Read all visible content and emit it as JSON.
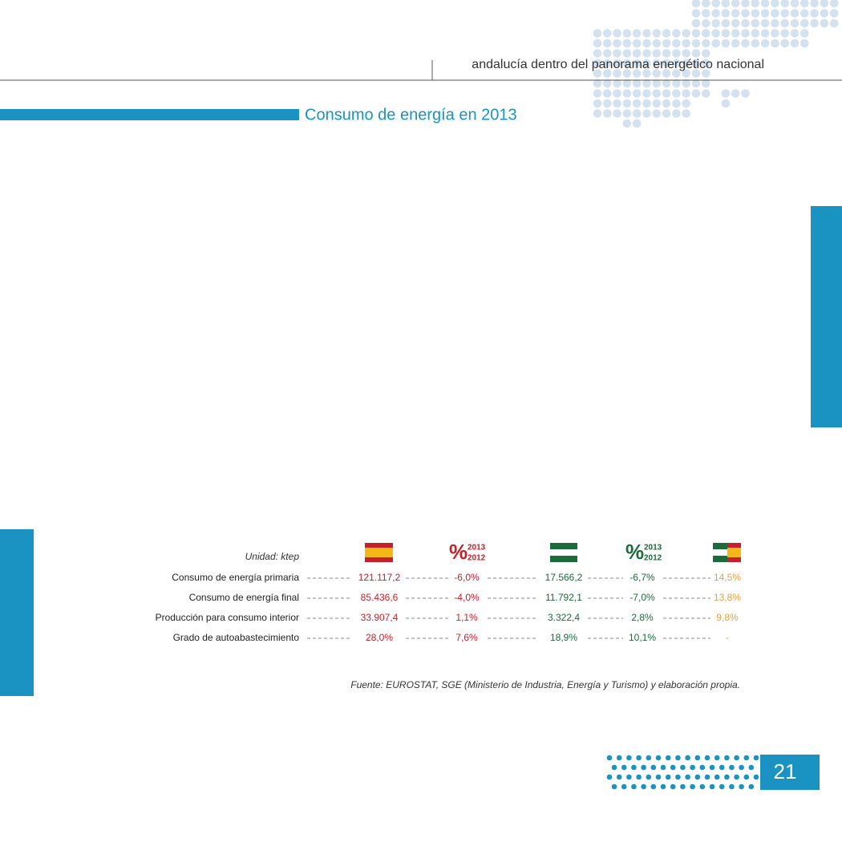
{
  "header": {
    "title": "andalucía dentro del panorama energético nacional"
  },
  "section_title": "Consumo de energía en 2013",
  "table": {
    "unit": "Unidad: ktep",
    "pct_headers": [
      {
        "symbol": "%",
        "top": "2013",
        "bottom": "2012"
      },
      {
        "symbol": "%",
        "top": "2013",
        "bottom": "2012"
      }
    ],
    "rows": [
      {
        "label": "Consumo de energía primaria",
        "cells": [
          "121.117,2",
          "-6,0%",
          "17.566,2",
          "-6,7%",
          "14,5%"
        ]
      },
      {
        "label": "Consumo de energía final",
        "cells": [
          "85.436,6",
          "-4,0%",
          "11.792,1",
          "-7,0%",
          "13,8%"
        ]
      },
      {
        "label": "Producción para consumo interior",
        "cells": [
          "33.907,4",
          "1,1%",
          "3.322,4",
          "2,8%",
          "9,8%"
        ]
      },
      {
        "label": "Grado de autoabastecimiento",
        "cells": [
          "28,0%",
          "7,6%",
          "18,9%",
          "10,1%",
          "-"
        ]
      }
    ]
  },
  "source": "Fuente: EUROSTAT, SGE (Ministerio de Industria, Energía y Turismo) y elaboración propia.",
  "page_number": "21"
}
